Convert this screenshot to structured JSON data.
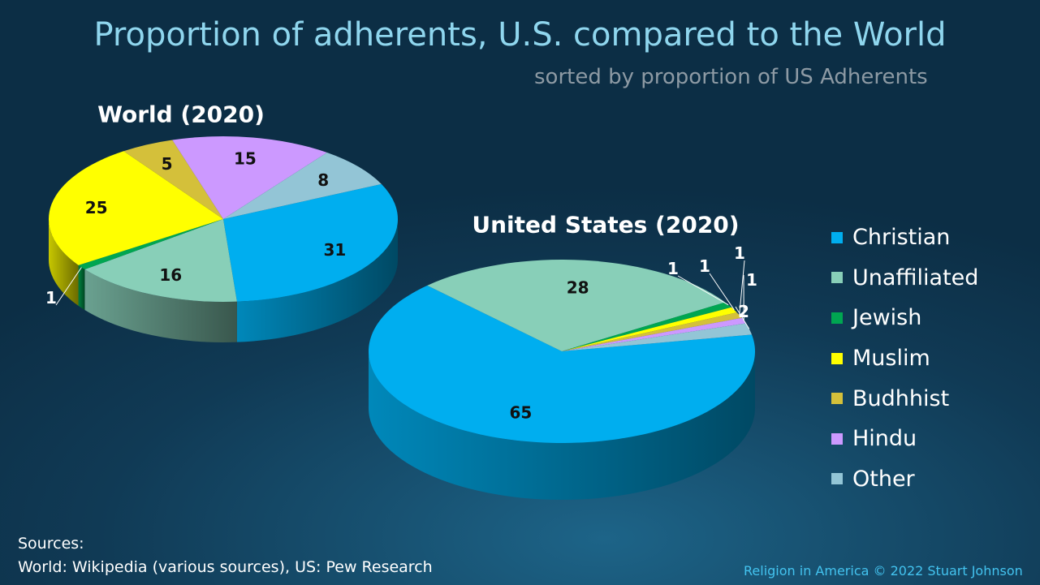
{
  "title": "Proportion of adherents, U.S. compared to the World",
  "subtitle": "sorted by proportion of US Adherents",
  "chart_data": {
    "type": "pie",
    "categories": [
      "Christian",
      "Unaffiliated",
      "Jewish",
      "Muslim",
      "Budhhist",
      "Hindu",
      "Other"
    ],
    "colors": [
      "#00aeef",
      "#88cfb8",
      "#00a651",
      "#ffff00",
      "#d4c03a",
      "#cc99ff",
      "#93c5d6"
    ],
    "legend_position": "right",
    "pies": [
      {
        "title": "World (2020)",
        "values": [
          31,
          16,
          1,
          25,
          5,
          15,
          8
        ],
        "labels": [
          "31",
          "16",
          "1",
          "25",
          "5",
          "15",
          "8"
        ]
      },
      {
        "title": "United States (2020)",
        "values": [
          65,
          28,
          1,
          1,
          1,
          1,
          2
        ],
        "labels": [
          "65",
          "28",
          "1",
          "1",
          "1",
          "1",
          "2"
        ]
      }
    ]
  },
  "sources": {
    "heading": "Sources:",
    "text": "World: Wikipedia (various sources),  US: Pew Research"
  },
  "copyright": "Religion in America © 2022 Stuart Johnson"
}
